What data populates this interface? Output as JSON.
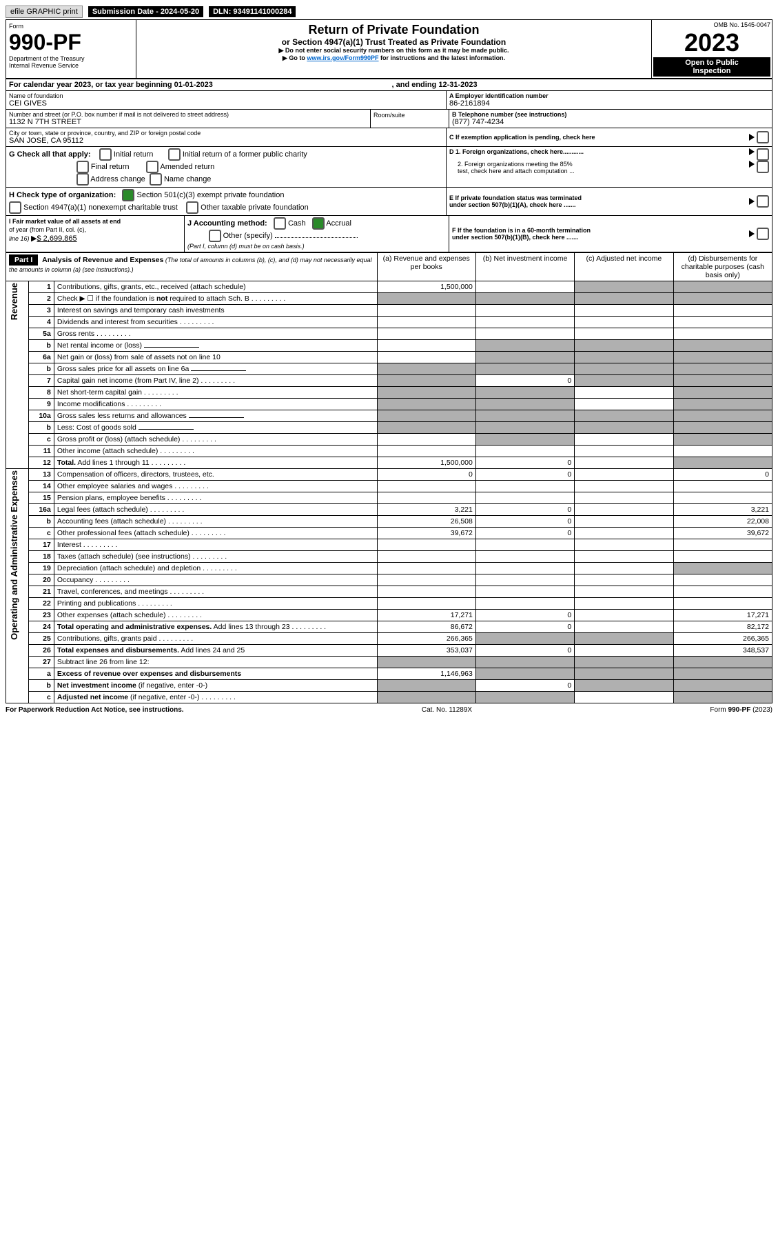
{
  "top": {
    "efile": "efile GRAPHIC print",
    "subdate_label": "Submission Date - 2024-05-20",
    "dln": "DLN: 93491141000284"
  },
  "form": {
    "form_word": "Form",
    "num": "990-PF",
    "dept": "Department of the Treasury",
    "irs": "Internal Revenue Service",
    "omb": "OMB No. 1545-0047",
    "year": "2023",
    "open": "Open to Public",
    "insp": "Inspection"
  },
  "title": {
    "main": "Return of Private Foundation",
    "sub": "or Section 4947(a)(1) Trust Treated as Private Foundation",
    "warn": "Do not enter social security numbers on this form as it may be made public.",
    "goto_pre": "Go to ",
    "goto_link": "www.irs.gov/Form990PF",
    "goto_post": " for instructions and the latest information."
  },
  "cy": {
    "text": "For calendar year 2023, or tax year beginning 01-01-2023",
    "end": ", and ending 12-31-2023"
  },
  "name": {
    "label": "Name of foundation",
    "val": "CEI GIVES"
  },
  "ein": {
    "label": "A Employer identification number",
    "val": "86-2161894"
  },
  "addr": {
    "label": "Number and street (or P.O. box number if mail is not delivered to street address)",
    "val": "1132 N 7TH STREET",
    "room": "Room/suite"
  },
  "phone": {
    "label": "B Telephone number (see instructions)",
    "val": "(877) 747-4234"
  },
  "city": {
    "label": "City or town, state or province, country, and ZIP or foreign postal code",
    "val": "SAN JOSE, CA  95112"
  },
  "c": {
    "text": "C If exemption application is pending, check here"
  },
  "g": {
    "label": "G Check all that apply:",
    "o1": "Initial return",
    "o2": "Final return",
    "o3": "Address change",
    "o4": "Initial return of a former public charity",
    "o5": "Amended return",
    "o6": "Name change"
  },
  "d": {
    "d1": "D 1. Foreign organizations, check here............",
    "d2a": "2. Foreign organizations meeting the 85%",
    "d2b": "test, check here and attach computation ..."
  },
  "h": {
    "label": "H Check type of organization:",
    "o1": "Section 501(c)(3) exempt private foundation",
    "o2": "Section 4947(a)(1) nonexempt charitable trust",
    "o3": "Other taxable private foundation"
  },
  "e": {
    "e1": "E  If private foundation status was terminated",
    "e2": "under section 507(b)(1)(A), check here ......."
  },
  "i": {
    "l1": "I Fair market value of all assets at end",
    "l2": "of year (from Part II, col. (c),",
    "l3": "line 16) ",
    "amt": "$  2,699,865"
  },
  "j": {
    "label": "J Accounting method:",
    "cash": "Cash",
    "accrual": "Accrual",
    "other": "Other (specify)",
    "note": "(Part I, column (d) must be on cash basis.)"
  },
  "f": {
    "f1": "F  If the foundation is in a 60-month termination",
    "f2": "under section 507(b)(1)(B), check here ......."
  },
  "part1": {
    "label": "Part I",
    "title": "Analysis of Revenue and Expenses",
    "sub": " (The total of amounts in columns (b), (c), and (d) may not necessarily equal the amounts in column (a) (see instructions).)",
    "ca": "(a)   Revenue and expenses per books",
    "cb": "(b)   Net investment income",
    "cc": "(c)   Adjusted net income",
    "cd": "(d)   Disbursements for charitable purposes (cash basis only)"
  },
  "side": {
    "rev": "Revenue",
    "exp": "Operating and Administrative Expenses"
  },
  "rows": [
    {
      "n": "1",
      "d": "Contributions, gifts, grants, etc., received (attach schedule)",
      "a": "1,500,000",
      "shadeB": false,
      "shadeC": true,
      "shadeD": true
    },
    {
      "n": "2",
      "d": "Check ▶ ☐ if the foundation is <b>not</b> required to attach Sch. B",
      "dots": true,
      "shadeA": true,
      "shadeB": true,
      "shadeC": true,
      "shadeD": true
    },
    {
      "n": "3",
      "d": "Interest on savings and temporary cash investments"
    },
    {
      "n": "4",
      "d": "Dividends and interest from securities",
      "dots": true
    },
    {
      "n": "5a",
      "d": "Gross rents",
      "dots": true
    },
    {
      "n": "b",
      "d": "Net rental income or (loss)",
      "shadeA": false,
      "shadeB": true,
      "shadeC": true,
      "shadeD": true,
      "inline": true
    },
    {
      "n": "6a",
      "d": "Net gain or (loss) from sale of assets not on line 10",
      "shadeB": true,
      "shadeC": true,
      "shadeD": true
    },
    {
      "n": "b",
      "d": "Gross sales price for all assets on line 6a",
      "shadeA": true,
      "shadeB": true,
      "shadeC": true,
      "shadeD": true,
      "inline": true
    },
    {
      "n": "7",
      "d": "Capital gain net income (from Part IV, line 2)",
      "dots": true,
      "b": "0",
      "shadeA": true,
      "shadeC": true,
      "shadeD": true
    },
    {
      "n": "8",
      "d": "Net short-term capital gain",
      "dots": true,
      "shadeA": true,
      "shadeB": true,
      "shadeD": true
    },
    {
      "n": "9",
      "d": "Income modifications",
      "dots": true,
      "shadeA": true,
      "shadeB": true,
      "shadeD": true
    },
    {
      "n": "10a",
      "d": "Gross sales less returns and allowances",
      "shadeA": true,
      "shadeB": true,
      "shadeC": true,
      "shadeD": true,
      "inline": true
    },
    {
      "n": "b",
      "d": "Less: Cost of goods sold",
      "dots": true,
      "shadeA": true,
      "shadeB": true,
      "shadeC": true,
      "shadeD": true,
      "inline": true
    },
    {
      "n": "c",
      "d": "Gross profit or (loss) (attach schedule)",
      "dots": true,
      "shadeB": true,
      "shadeD": true
    },
    {
      "n": "11",
      "d": "Other income (attach schedule)",
      "dots": true
    },
    {
      "n": "12",
      "d": "<b>Total.</b> Add lines 1 through 11",
      "dots": true,
      "a": "1,500,000",
      "b": "0",
      "shadeD": true
    },
    {
      "n": "13",
      "d": "Compensation of officers, directors, trustees, etc.",
      "a": "0",
      "b": "0",
      "d2": "0"
    },
    {
      "n": "14",
      "d": "Other employee salaries and wages",
      "dots": true
    },
    {
      "n": "15",
      "d": "Pension plans, employee benefits",
      "dots": true
    },
    {
      "n": "16a",
      "d": "Legal fees (attach schedule)",
      "dots": true,
      "a": "3,221",
      "b": "0",
      "d2": "3,221"
    },
    {
      "n": "b",
      "d": "Accounting fees (attach schedule)",
      "dots": true,
      "a": "26,508",
      "b": "0",
      "d2": "22,008"
    },
    {
      "n": "c",
      "d": "Other professional fees (attach schedule)",
      "dots": true,
      "a": "39,672",
      "b": "0",
      "d2": "39,672"
    },
    {
      "n": "17",
      "d": "Interest",
      "dots": true
    },
    {
      "n": "18",
      "d": "Taxes (attach schedule) (see instructions)",
      "dots": true
    },
    {
      "n": "19",
      "d": "Depreciation (attach schedule) and depletion",
      "dots": true,
      "shadeD": true
    },
    {
      "n": "20",
      "d": "Occupancy",
      "dots": true
    },
    {
      "n": "21",
      "d": "Travel, conferences, and meetings",
      "dots": true
    },
    {
      "n": "22",
      "d": "Printing and publications",
      "dots": true
    },
    {
      "n": "23",
      "d": "Other expenses (attach schedule)",
      "dots": true,
      "a": "17,271",
      "b": "0",
      "d2": "17,271"
    },
    {
      "n": "24",
      "d": "<b>Total operating and administrative expenses.</b> Add lines 13 through 23",
      "dots": true,
      "a": "86,672",
      "b": "0",
      "d2": "82,172"
    },
    {
      "n": "25",
      "d": "Contributions, gifts, grants paid",
      "dots": true,
      "a": "266,365",
      "shadeB": true,
      "shadeC": true,
      "d2": "266,365"
    },
    {
      "n": "26",
      "d": "<b>Total expenses and disbursements.</b> Add lines 24 and 25",
      "a": "353,037",
      "b": "0",
      "d2": "348,537"
    },
    {
      "n": "27",
      "d": "Subtract line 26 from line 12:",
      "shadeA": true,
      "shadeB": true,
      "shadeC": true,
      "shadeD": true
    },
    {
      "n": "a",
      "d": "<b>Excess of revenue over expenses and disbursements</b>",
      "a": "1,146,963",
      "shadeB": true,
      "shadeC": true,
      "shadeD": true
    },
    {
      "n": "b",
      "d": "<b>Net investment income</b> (if negative, enter -0-)",
      "shadeA": true,
      "b": "0",
      "shadeC": true,
      "shadeD": true
    },
    {
      "n": "c",
      "d": "<b>Adjusted net income</b> (if negative, enter -0-)",
      "dots": true,
      "shadeA": true,
      "shadeB": true,
      "shadeD": true
    }
  ],
  "footer": {
    "left": "For Paperwork Reduction Act Notice, see instructions.",
    "mid": "Cat. No. 11289X",
    "right": "Form 990-PF (2023)"
  }
}
